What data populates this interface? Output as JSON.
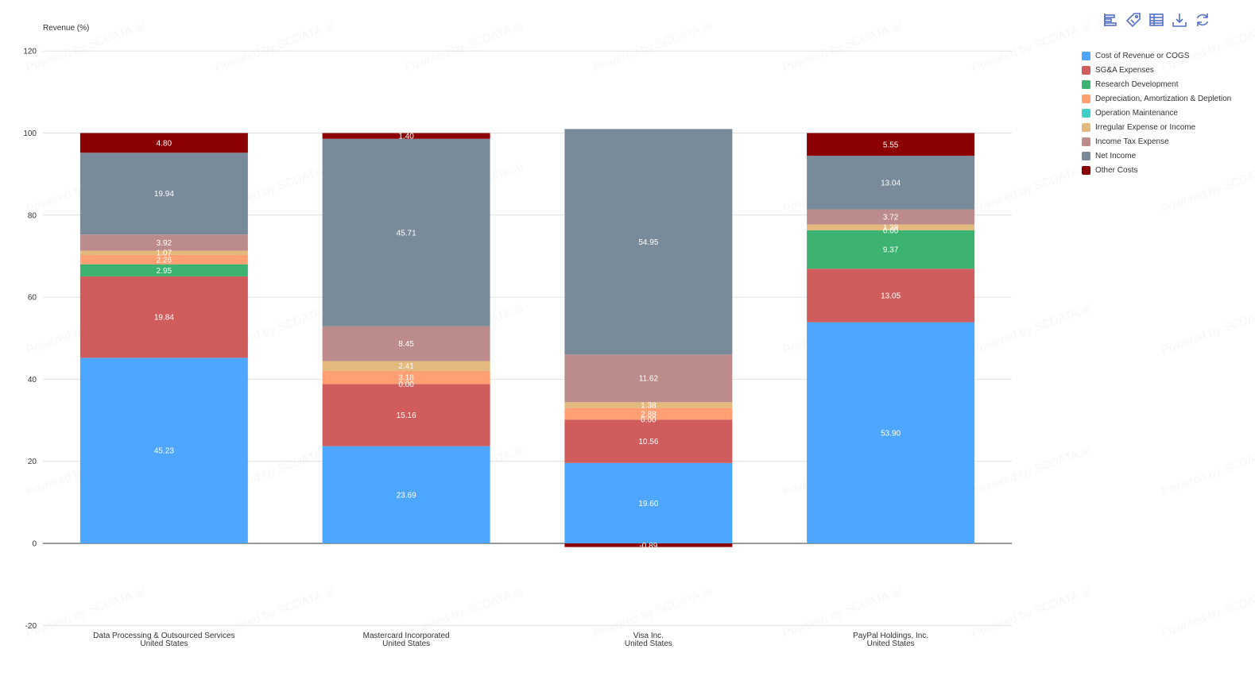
{
  "toolbar": {
    "icons": [
      "bar-chart-icon",
      "tag-icon",
      "table-icon",
      "download-icon",
      "refresh-icon"
    ]
  },
  "watermark": "Powered by SCDATA.ai",
  "chart_data": {
    "type": "bar",
    "stacked": true,
    "ylabel": "Revenue (%)",
    "ylim": [
      -20,
      120
    ],
    "yticks": [
      -20,
      0,
      20,
      40,
      60,
      80,
      100,
      120
    ],
    "grid": true,
    "legend_position": "top-right",
    "categories": [
      "Data Processing & Outsourced Services\nUnited States",
      "Mastercard Incorporated\nUnited States",
      "Visa Inc.\nUnited States",
      "PayPal Holdings, Inc.\nUnited States"
    ],
    "series": [
      {
        "name": "Cost of Revenue or COGS",
        "color": "#4DA6FF",
        "values": [
          45.23,
          23.69,
          19.6,
          53.9
        ]
      },
      {
        "name": "SG&A Expenses",
        "color": "#D05C5C",
        "values": [
          19.84,
          15.16,
          10.56,
          13.05
        ]
      },
      {
        "name": "Research Development",
        "color": "#3CB371",
        "values": [
          2.95,
          0.0,
          0.0,
          9.37
        ]
      },
      {
        "name": "Depreciation, Amortization & Depletion",
        "color": "#FF9F72",
        "values": [
          2.26,
          3.18,
          2.88,
          0.0
        ]
      },
      {
        "name": "Operation Maintenance",
        "color": "#40D0C8",
        "values": [
          0.0,
          0.0,
          0.0,
          0.0
        ]
      },
      {
        "name": "Irregular Expense or Income",
        "color": "#E3B97E",
        "values": [
          1.07,
          2.41,
          1.38,
          1.38
        ]
      },
      {
        "name": "Income Tax Expense",
        "color": "#BC8C8C",
        "values": [
          3.92,
          8.45,
          11.62,
          3.72
        ]
      },
      {
        "name": "Net Income",
        "color": "#798A9A",
        "values": [
          19.94,
          45.71,
          54.95,
          13.04
        ]
      },
      {
        "name": "Other Costs",
        "color": "#8B0000",
        "values": [
          4.8,
          1.4,
          -0.89,
          5.55
        ]
      }
    ]
  }
}
